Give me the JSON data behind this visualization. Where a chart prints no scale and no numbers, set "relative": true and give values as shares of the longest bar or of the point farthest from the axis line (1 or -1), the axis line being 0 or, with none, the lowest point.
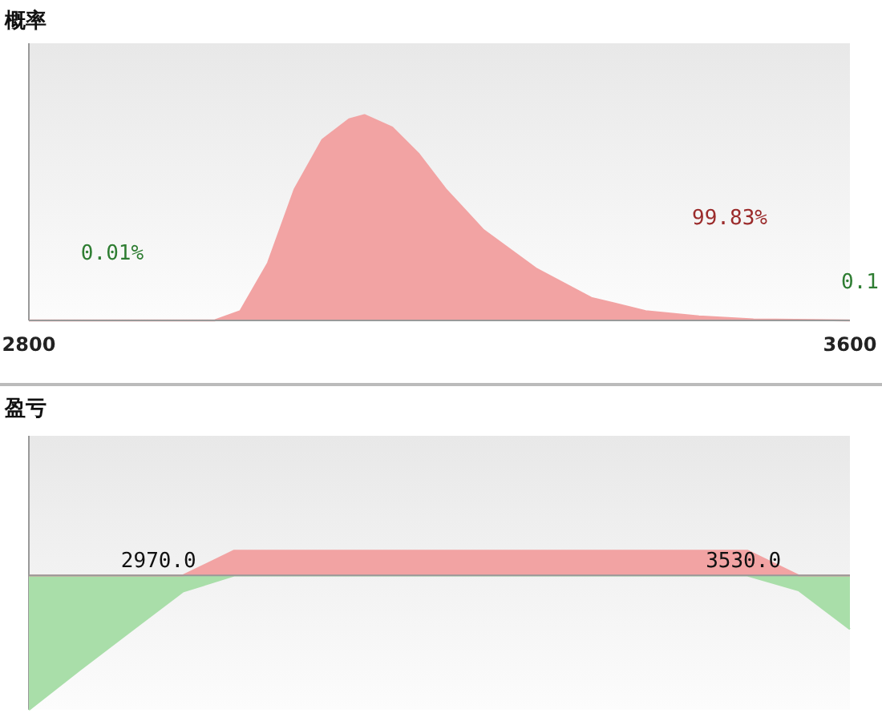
{
  "chart_data": [
    {
      "type": "area",
      "title": "概率",
      "relative": true,
      "xlim": [
        2800,
        3600
      ],
      "xticks": [
        2800,
        3600
      ],
      "tick_labels": "x",
      "series": [
        {
          "color": "#f2a3a3",
          "x": [
            2800,
            2981,
            3006,
            3033,
            3059,
            3086,
            3112,
            3127,
            3154,
            3180,
            3206,
            3243,
            3295,
            3348,
            3401,
            3453,
            3506,
            3600
          ],
          "values": [
            0,
            0,
            0.045,
            0.28,
            0.64,
            0.88,
            0.98,
            1,
            0.94,
            0.81,
            0.64,
            0.44,
            0.25,
            0.11,
            0.045,
            0.02,
            0.005,
            0
          ]
        }
      ],
      "annotations": [
        "0.01%",
        "99.83%",
        "0.1"
      ]
    },
    {
      "type": "area",
      "title": "盈亏",
      "relative": true,
      "tick_labels": false,
      "categories": [
        null,
        null,
        null,
        null,
        null,
        null,
        null,
        null,
        null,
        null,
        null,
        null,
        null,
        null,
        null,
        null,
        null
      ],
      "series": [
        {
          "color": "#a9dea9",
          "values": [
            -1,
            -0.7,
            -0.41,
            -0.12,
            0,
            0,
            0,
            0,
            0,
            0,
            0,
            0,
            0,
            0,
            0,
            -0.11,
            -0.4
          ]
        },
        {
          "color": "#f2a3a3",
          "values": [
            0,
            0,
            0,
            0,
            0.185,
            0.185,
            0.185,
            0.185,
            0.185,
            0.185,
            0.185,
            0.185,
            0.185,
            0.185,
            0.185,
            0,
            0
          ]
        }
      ],
      "annotations": [
        "2970.0",
        "3530.0"
      ]
    }
  ]
}
